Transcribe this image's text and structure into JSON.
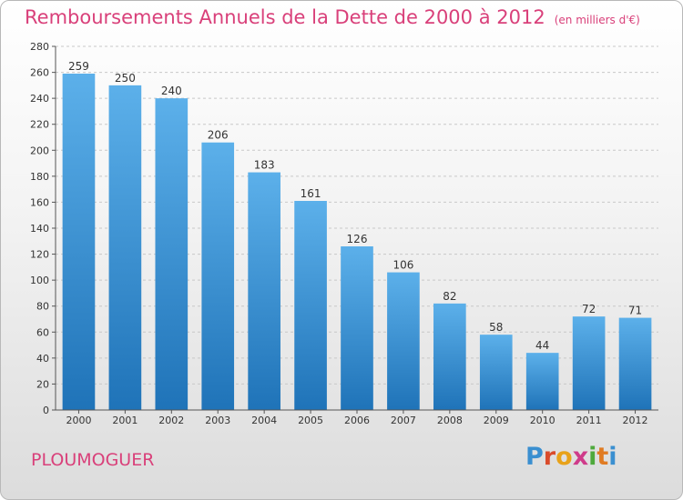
{
  "title": "Remboursements Annuels de la Dette de 2000 à 2012",
  "unit_note": "(en milliers d'€)",
  "commune": "PLOUMOGUER",
  "logo": {
    "letters": [
      {
        "char": "P",
        "color": "#3a8fd0"
      },
      {
        "char": "r",
        "color": "#d94b2b"
      },
      {
        "char": "o",
        "color": "#e8a21a"
      },
      {
        "char": "x",
        "color": "#cf3b8a"
      },
      {
        "char": "i",
        "color": "#4ea93c"
      },
      {
        "char": "t",
        "color": "#e07b22"
      },
      {
        "char": "i",
        "color": "#3a8fd0"
      }
    ]
  },
  "colors": {
    "accent": "#d9407a",
    "bar_top": "#5cb0ea",
    "bar_bottom": "#1f73b8"
  },
  "chart_data": {
    "type": "bar",
    "categories": [
      "2000",
      "2001",
      "2002",
      "2003",
      "2004",
      "2005",
      "2006",
      "2007",
      "2008",
      "2009",
      "2010",
      "2011",
      "2012"
    ],
    "values": [
      259,
      250,
      240,
      206,
      183,
      161,
      126,
      106,
      82,
      58,
      44,
      72,
      71
    ],
    "ylim": [
      0,
      280
    ],
    "yticks": [
      0,
      20,
      40,
      60,
      80,
      100,
      120,
      140,
      160,
      180,
      200,
      220,
      240,
      260,
      280
    ],
    "grid": true,
    "legend": "none"
  }
}
